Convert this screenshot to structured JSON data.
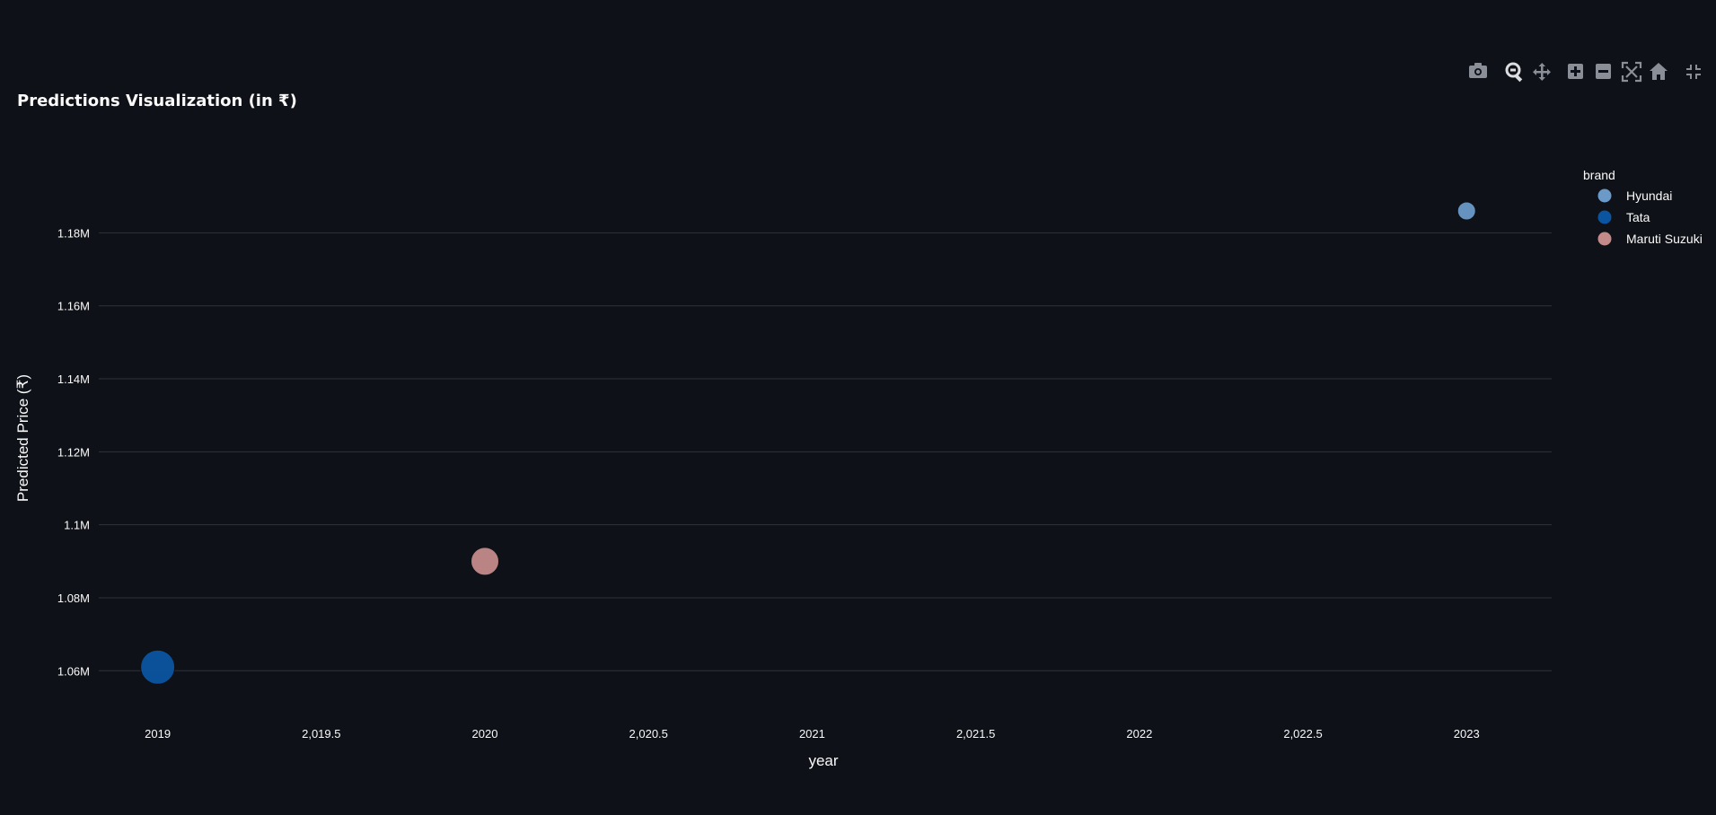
{
  "modebar": {
    "buttons": [
      "camera-icon",
      "zoom-icon",
      "pan-icon",
      "zoom-in-icon",
      "zoom-out-icon",
      "autoscale-icon",
      "reset-axes-icon",
      "fullscreen-icon"
    ]
  },
  "chart_data": {
    "type": "scatter",
    "title": "Predictions Visualization (in ₹)",
    "xlabel": "year",
    "ylabel": "Predicted Price (₹)",
    "xlim": [
      2018.82,
      2023.26
    ],
    "ylim": [
      1.0495,
      1.2015
    ],
    "x_ticks": [
      {
        "value": 2019,
        "label": "2019"
      },
      {
        "value": 2019.5,
        "label": "2,019.5"
      },
      {
        "value": 2020,
        "label": "2020"
      },
      {
        "value": 2020.5,
        "label": "2,020.5"
      },
      {
        "value": 2021,
        "label": "2021"
      },
      {
        "value": 2021.5,
        "label": "2,021.5"
      },
      {
        "value": 2022,
        "label": "2022"
      },
      {
        "value": 2022.5,
        "label": "2,022.5"
      },
      {
        "value": 2023,
        "label": "2023"
      }
    ],
    "y_ticks": [
      {
        "value": 1.06,
        "label": "1.06M"
      },
      {
        "value": 1.08,
        "label": "1.08M"
      },
      {
        "value": 1.1,
        "label": "1.1M"
      },
      {
        "value": 1.12,
        "label": "1.12M"
      },
      {
        "value": 1.14,
        "label": "1.14M"
      },
      {
        "value": 1.16,
        "label": "1.16M"
      },
      {
        "value": 1.18,
        "label": "1.18M"
      }
    ],
    "grid": true,
    "legend": {
      "title": "brand",
      "placement": "right"
    },
    "series": [
      {
        "name": "Hyundai",
        "color": "#6b9ac9",
        "points": [
          {
            "x": 2023,
            "y": 1.186,
            "size": 1.0
          }
        ]
      },
      {
        "name": "Tata",
        "color": "#0b55a0",
        "points": [
          {
            "x": 2019,
            "y": 1.061,
            "size": 1.9
          }
        ]
      },
      {
        "name": "Maruti Suzuki",
        "color": "#c48a8a",
        "points": [
          {
            "x": 2020,
            "y": 1.09,
            "size": 1.55
          }
        ]
      }
    ]
  }
}
